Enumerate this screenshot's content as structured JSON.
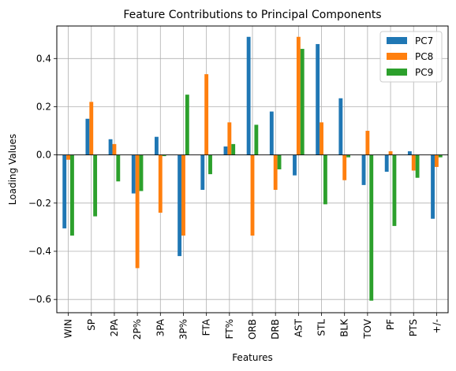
{
  "chart_data": {
    "type": "bar",
    "title": "Feature Contributions to Principal Components",
    "xlabel": "Features",
    "ylabel": "Loading Values",
    "categories": [
      "WIN",
      "SP",
      "2PA",
      "2P%",
      "3PA",
      "3P%",
      "FTA",
      "FT%",
      "ORB",
      "DRB",
      "AST",
      "STL",
      "BLK",
      "TOV",
      "PF",
      "PTS",
      "+/-"
    ],
    "series": [
      {
        "name": "PC7",
        "color": "#1f77b4",
        "values": [
          -0.305,
          0.15,
          0.065,
          -0.16,
          0.075,
          -0.42,
          -0.145,
          0.035,
          0.49,
          0.18,
          -0.085,
          0.46,
          0.235,
          -0.125,
          -0.07,
          0.015,
          -0.265
        ]
      },
      {
        "name": "PC8",
        "color": "#ff7f0e",
        "values": [
          -0.02,
          0.22,
          0.045,
          -0.47,
          -0.24,
          -0.335,
          0.335,
          0.135,
          -0.335,
          -0.145,
          0.49,
          0.135,
          -0.105,
          0.1,
          0.015,
          -0.065,
          -0.05
        ]
      },
      {
        "name": "PC9",
        "color": "#2ca02c",
        "values": [
          -0.335,
          -0.255,
          -0.11,
          -0.15,
          -0.005,
          0.25,
          -0.08,
          0.045,
          0.125,
          -0.06,
          0.44,
          -0.205,
          -0.01,
          -0.605,
          -0.295,
          -0.095,
          -0.01
        ]
      }
    ],
    "ylim": [
      -0.655,
      0.535
    ],
    "yticks": [
      -0.6,
      -0.4,
      -0.2,
      0.0,
      0.2,
      0.4
    ],
    "ytick_labels": [
      "−0.6",
      "−0.4",
      "−0.2",
      "0.0",
      "0.2",
      "0.4"
    ],
    "grid": true,
    "legend_position": "top-right"
  }
}
